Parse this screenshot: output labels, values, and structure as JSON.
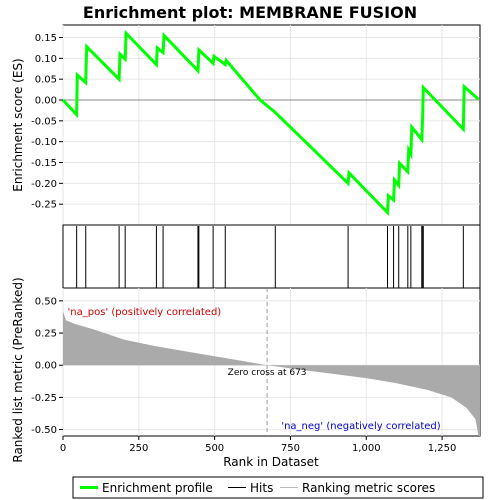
{
  "chart_data": {
    "type": "line",
    "title": "Enrichment plot: MEMBRANE FUSION",
    "es_panel": {
      "ylabel": "Enrichment score (ES)",
      "ylim": [
        -0.3,
        0.18
      ],
      "yticks": [
        0.15,
        0.1,
        0.05,
        0.0,
        -0.05,
        -0.1,
        -0.15,
        -0.2,
        -0.25
      ],
      "ytick_labels": [
        "0.15",
        "0.10",
        "0.05",
        "0.00",
        "-0.05",
        "-0.10",
        "-0.15",
        "-0.20",
        "-0.25"
      ],
      "line_color": "#00ff00",
      "series_name": "Enrichment profile",
      "points": [
        [
          0,
          0.0
        ],
        [
          45,
          -0.035
        ],
        [
          47,
          0.06
        ],
        [
          75,
          0.042
        ],
        [
          78,
          0.128
        ],
        [
          185,
          0.05
        ],
        [
          188,
          0.11
        ],
        [
          205,
          0.098
        ],
        [
          208,
          0.16
        ],
        [
          308,
          0.085
        ],
        [
          311,
          0.125
        ],
        [
          330,
          0.114
        ],
        [
          333,
          0.155
        ],
        [
          445,
          0.07
        ],
        [
          448,
          0.12
        ],
        [
          495,
          0.088
        ],
        [
          498,
          0.105
        ],
        [
          535,
          0.085
        ],
        [
          538,
          0.095
        ],
        [
          650,
          0.0
        ],
        [
          700,
          -0.03
        ],
        [
          940,
          -0.2
        ],
        [
          943,
          -0.175
        ],
        [
          1070,
          -0.27
        ],
        [
          1073,
          -0.23
        ],
        [
          1090,
          -0.24
        ],
        [
          1093,
          -0.192
        ],
        [
          1107,
          -0.205
        ],
        [
          1110,
          -0.152
        ],
        [
          1137,
          -0.172
        ],
        [
          1140,
          -0.12
        ],
        [
          1147,
          -0.13
        ],
        [
          1150,
          -0.065
        ],
        [
          1183,
          -0.095
        ],
        [
          1186,
          -0.035
        ],
        [
          1188,
          0.03
        ],
        [
          1320,
          -0.07
        ],
        [
          1323,
          0.032
        ],
        [
          1370,
          0.002
        ]
      ]
    },
    "hits_panel": {
      "legend_label": "Hits",
      "positions": [
        45,
        75,
        185,
        205,
        308,
        330,
        445,
        448,
        495,
        535,
        700,
        940,
        1070,
        1090,
        1107,
        1137,
        1147,
        1183,
        1186,
        1188,
        1320
      ]
    },
    "rank_panel": {
      "ylabel": "Ranked list metric (PreRanked)",
      "xlabel": "Rank in Dataset",
      "xlim": [
        0,
        1375
      ],
      "ylim": [
        -0.55,
        0.6
      ],
      "xticks": [
        0,
        250,
        500,
        750,
        1000,
        1250
      ],
      "xtick_labels": [
        "0",
        "250",
        "500",
        "750",
        "1,000",
        "1,250"
      ],
      "yticks": [
        0.5,
        0.25,
        0.0,
        -0.25,
        -0.5
      ],
      "ytick_labels": [
        "0.50",
        "0.25",
        "0.00",
        "-0.25",
        "-0.50"
      ],
      "series_name": "Ranking metric scores",
      "fill_color": "#aaaaaa",
      "metric_curve": [
        [
          0,
          0.42
        ],
        [
          10,
          0.35
        ],
        [
          40,
          0.32
        ],
        [
          100,
          0.28
        ],
        [
          200,
          0.2
        ],
        [
          300,
          0.15
        ],
        [
          400,
          0.11
        ],
        [
          500,
          0.07
        ],
        [
          600,
          0.03
        ],
        [
          673,
          0.0
        ],
        [
          800,
          -0.04
        ],
        [
          900,
          -0.07
        ],
        [
          1000,
          -0.1
        ],
        [
          1100,
          -0.14
        ],
        [
          1200,
          -0.19
        ],
        [
          1280,
          -0.25
        ],
        [
          1330,
          -0.33
        ],
        [
          1360,
          -0.42
        ],
        [
          1370,
          -0.55
        ],
        [
          1375,
          -0.55
        ]
      ],
      "zero_cross_label": "Zero cross at 673",
      "zero_cross_rank": 673,
      "pos_label": "'na_pos' (positively correlated)",
      "neg_label": "'na_neg' (negatively correlated)",
      "pos_label_color": "#cc0000",
      "neg_label_color": "#0000cc"
    },
    "color_bar": {
      "segments": [
        {
          "start": 0,
          "end": 120,
          "color": "#e01010"
        },
        {
          "start": 120,
          "end": 300,
          "color": "#f04545"
        },
        {
          "start": 300,
          "end": 410,
          "color": "#f57575"
        },
        {
          "start": 410,
          "end": 530,
          "color": "#fa9999"
        },
        {
          "start": 530,
          "end": 670,
          "color": "#fdc4e0"
        },
        {
          "start": 670,
          "end": 810,
          "color": "#e6e2f8"
        },
        {
          "start": 810,
          "end": 950,
          "color": "#c9c4f2"
        },
        {
          "start": 950,
          "end": 1060,
          "color": "#8f88e6"
        },
        {
          "start": 1060,
          "end": 1260,
          "color": "#4a3cd6"
        },
        {
          "start": 1260,
          "end": 1375,
          "color": "#2a10c8"
        }
      ]
    },
    "legend": {
      "placement": "bottom",
      "items": [
        {
          "label": "Enrichment profile",
          "color": "#00ff00",
          "kind": "line-thick"
        },
        {
          "label": "Hits",
          "color": "#000000",
          "kind": "line-thin"
        },
        {
          "label": "Ranking metric scores",
          "color": "#bbbbbb",
          "kind": "line-thin"
        }
      ]
    }
  }
}
